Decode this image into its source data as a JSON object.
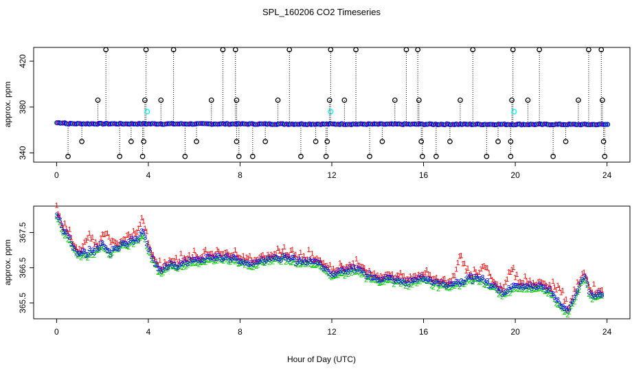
{
  "title": "SPL_160206  CO2 Timeseries",
  "colors": {
    "series1": "#ff0000",
    "series2": "#00cd00",
    "series3": "#0000ff",
    "cyan": "#00ffff",
    "black": "#000000"
  },
  "chart_data": [
    {
      "type": "scatter",
      "title": "SPL_160206  CO2 Timeseries",
      "xlabel": "",
      "ylabel": "approx. ppm",
      "xlim": [
        -1,
        25
      ],
      "ylim": [
        332,
        432
      ],
      "xticks": [
        "0",
        "4",
        "8",
        "12",
        "16",
        "20",
        "24"
      ],
      "yticks": [
        "340",
        "380",
        "420"
      ],
      "baseline": 365.5,
      "baseline_points_per_hour": 12,
      "spikes_high": [
        2.15,
        3.9,
        5.1,
        7.25,
        7.8,
        10.15,
        11.95,
        13.05,
        15.25,
        15.75,
        18.15,
        19.9,
        21.05,
        23.2,
        23.75
      ],
      "spikes_mid": [
        1.8,
        3.85,
        4.55,
        6.75,
        7.85,
        9.65,
        11.9,
        12.55,
        14.75,
        15.8,
        17.6,
        19.85,
        20.55,
        22.75,
        23.8
      ],
      "spikes_mid2": [
        1.1,
        3.25,
        3.8,
        6.1,
        7.85,
        9.1,
        11.3,
        11.8,
        14.2,
        15.9,
        17.15,
        19.25,
        19.8,
        22.2,
        23.85
      ],
      "spikes_low": [
        0.5,
        2.75,
        3.75,
        5.6,
        7.95,
        8.55,
        10.65,
        11.75,
        13.65,
        15.95,
        16.55,
        18.75,
        19.8,
        21.65,
        23.9
      ],
      "spike_levels": {
        "high": 430,
        "mid": 386,
        "mid2": 350,
        "low": 337
      },
      "cyan_points": [
        [
          3.95,
          376
        ],
        [
          11.95,
          376
        ],
        [
          19.95,
          376
        ]
      ]
    },
    {
      "type": "scatter",
      "xlabel": "Hour of Day (UTC)",
      "ylabel": "approx. ppm",
      "xlim": [
        -1,
        25
      ],
      "ylim": [
        365.05,
        368.25
      ],
      "xticks": [
        "0",
        "4",
        "8",
        "12",
        "16",
        "20",
        "24"
      ],
      "yticks": [
        "365.5",
        "366.5",
        "367.5"
      ],
      "series": [
        {
          "name": "1",
          "color": "#ff0000",
          "offset": 0.1
        },
        {
          "name": "2",
          "color": "#00cd00",
          "offset": -0.07
        },
        {
          "name": "3",
          "color": "#0000ff",
          "offset": 0
        }
      ],
      "series1_excursions": [
        [
          17.6,
          0.55
        ],
        [
          19.8,
          0.45
        ],
        [
          18.7,
          0.4
        ],
        [
          21.9,
          0.35
        ],
        [
          1.4,
          0.4
        ],
        [
          2.2,
          0.4
        ],
        [
          3.7,
          0.3
        ]
      ],
      "trend_x": [
        0,
        0.3,
        0.6,
        0.9,
        1.2,
        1.6,
        2.0,
        2.3,
        2.6,
        3.0,
        3.4,
        3.8,
        4.1,
        4.5,
        4.9,
        5.3,
        5.8,
        6.4,
        7.0,
        7.5,
        8.0,
        8.5,
        9.0,
        9.5,
        10.0,
        10.5,
        11.0,
        11.5,
        12.0,
        12.5,
        13.0,
        13.5,
        14.0,
        14.5,
        15.0,
        15.5,
        16.0,
        16.5,
        17.0,
        17.5,
        18.0,
        18.5,
        19.0,
        19.5,
        20.0,
        20.5,
        21.0,
        21.5,
        22.0,
        22.3,
        22.7,
        23.0,
        23.3,
        23.8
      ],
      "trend_y": [
        368.0,
        367.6,
        367.3,
        366.9,
        366.9,
        367.0,
        367.2,
        366.9,
        367.1,
        367.2,
        367.3,
        367.5,
        366.9,
        366.4,
        366.6,
        366.6,
        366.7,
        366.7,
        366.8,
        366.8,
        366.7,
        366.6,
        366.7,
        366.8,
        366.8,
        366.7,
        366.7,
        366.6,
        366.3,
        366.4,
        366.5,
        366.3,
        366.2,
        366.2,
        366.1,
        366.1,
        366.2,
        366.1,
        366.0,
        366.1,
        366.2,
        366.2,
        366.0,
        365.8,
        366.0,
        366.0,
        366.0,
        365.9,
        365.4,
        365.3,
        365.8,
        366.3,
        365.7,
        365.8
      ],
      "points_per_hour": 14
    }
  ]
}
